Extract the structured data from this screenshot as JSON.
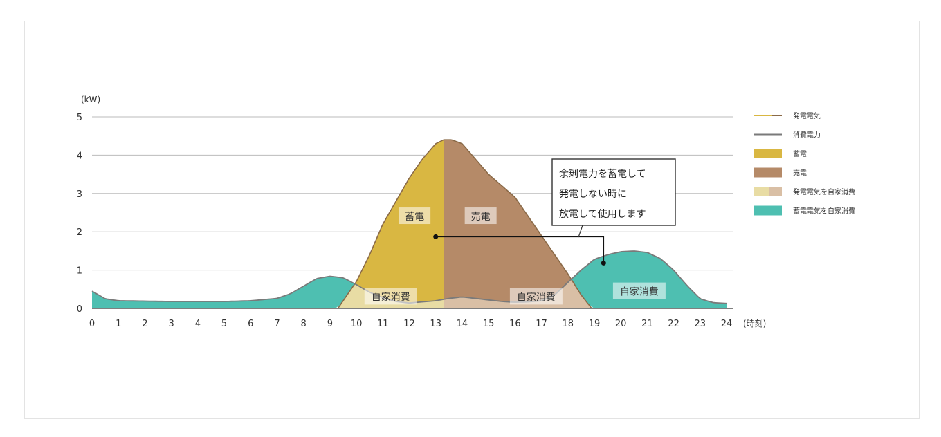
{
  "chart_data": {
    "type": "area",
    "x_unit": "(時刻)",
    "y_unit": "(kW)",
    "xlim": [
      0,
      24
    ],
    "ylim": [
      0,
      5
    ],
    "x_ticks": [
      "0",
      "1",
      "2",
      "3",
      "4",
      "5",
      "6",
      "7",
      "8",
      "9",
      "10",
      "11",
      "12",
      "13",
      "14",
      "15",
      "16",
      "17",
      "18",
      "19",
      "20",
      "21",
      "22",
      "23",
      "24"
    ],
    "y_ticks": [
      "0",
      "1",
      "2",
      "3",
      "4",
      "5"
    ],
    "grid": "horizontal",
    "series": [
      {
        "name": "発電電気",
        "x": [
          9.3,
          10,
          10.5,
          11,
          11.5,
          12,
          12.5,
          13,
          13.3,
          13.6,
          14,
          15,
          16,
          17,
          18,
          18.5,
          18.9
        ],
        "y": [
          0,
          0.7,
          1.4,
          2.2,
          2.8,
          3.4,
          3.9,
          4.3,
          4.4,
          4.4,
          4.3,
          3.5,
          2.9,
          1.9,
          0.9,
          0.35,
          0
        ]
      },
      {
        "name": "消費電力",
        "x": [
          0,
          0.5,
          1,
          2,
          3,
          4,
          5,
          6,
          7,
          7.5,
          8,
          8.5,
          9,
          9.5,
          10,
          10.5,
          11,
          11.5,
          12,
          12.5,
          13,
          13.5,
          14,
          14.5,
          15,
          15.5,
          16,
          16.5,
          17,
          17.5,
          18,
          18.5,
          19,
          19.5,
          20,
          20.5,
          21,
          21.5,
          22,
          22.5,
          23,
          23.5,
          24
        ],
        "y": [
          0.45,
          0.25,
          0.2,
          0.19,
          0.18,
          0.18,
          0.18,
          0.2,
          0.26,
          0.38,
          0.58,
          0.78,
          0.84,
          0.8,
          0.62,
          0.42,
          0.28,
          0.18,
          0.14,
          0.17,
          0.2,
          0.26,
          0.3,
          0.26,
          0.22,
          0.18,
          0.16,
          0.17,
          0.2,
          0.35,
          0.68,
          1.0,
          1.28,
          1.4,
          1.48,
          1.5,
          1.46,
          1.3,
          1.0,
          0.6,
          0.25,
          0.15,
          0.13
        ]
      },
      {
        "name": "蓄電"
      },
      {
        "name": "売電"
      },
      {
        "name": "発電電気を自家消費"
      },
      {
        "name": "蓄電電気を自家消費"
      }
    ],
    "storage_split_x": 13.3,
    "colors": {
      "generation_line": "#d9b742",
      "consumption_line": "#7a7a7a",
      "storage": "#d9b742",
      "sell": "#b58a68",
      "self_gen": "#e8dca4",
      "self_gen_right": "#d9bfa5",
      "self_storage": "#4ebfb1",
      "grid": "#bbbbbb",
      "axis": "#555555"
    },
    "area_labels": [
      {
        "text": "蓄電",
        "x": 12.2,
        "y": 2.4
      },
      {
        "text": "売電",
        "x": 14.7,
        "y": 2.4
      },
      {
        "text": "自家消費",
        "x": 11.3,
        "y": 0.3
      },
      {
        "text": "自家消費",
        "x": 16.8,
        "y": 0.3
      },
      {
        "text": "自家消費",
        "x": 20.7,
        "y": 0.44
      }
    ],
    "annotation": {
      "lines": [
        "余剰電力を蓄電して",
        "発電しない時に",
        "放電して使用します"
      ]
    },
    "legend_position": "right"
  }
}
